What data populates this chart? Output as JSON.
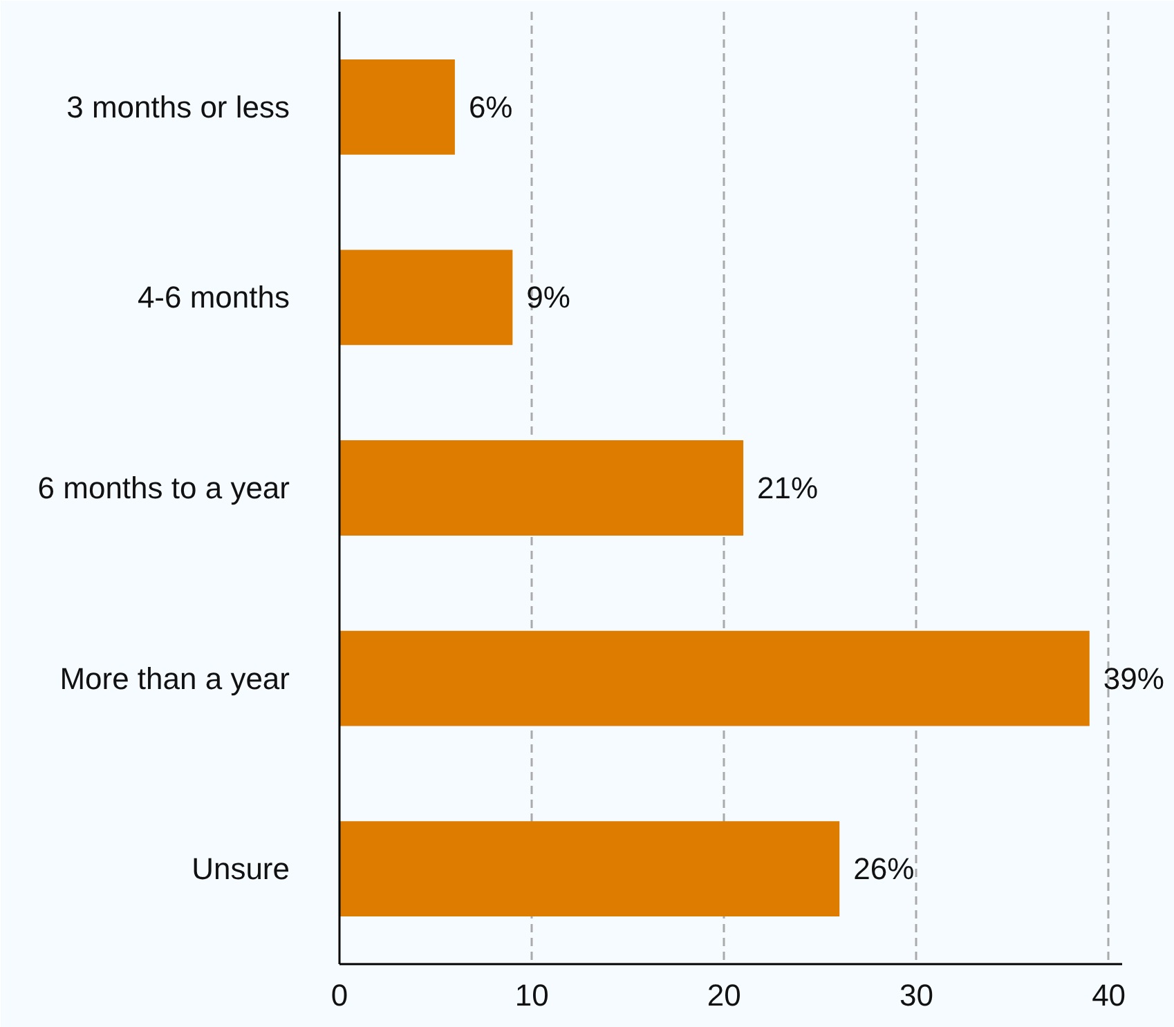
{
  "chart_data": {
    "type": "bar",
    "orientation": "horizontal",
    "categories": [
      "3 months or less",
      "4-6 months",
      "6 months to a year",
      "More than a year",
      "Unsure"
    ],
    "values": [
      6,
      9,
      21,
      39,
      26
    ],
    "value_labels": [
      "6%",
      "9%",
      "21%",
      "39%",
      "26%"
    ],
    "color": "#de7c00",
    "xlim": [
      0,
      40.7
    ],
    "xticks": [
      0,
      10,
      20,
      30,
      40
    ],
    "grid": "x"
  }
}
